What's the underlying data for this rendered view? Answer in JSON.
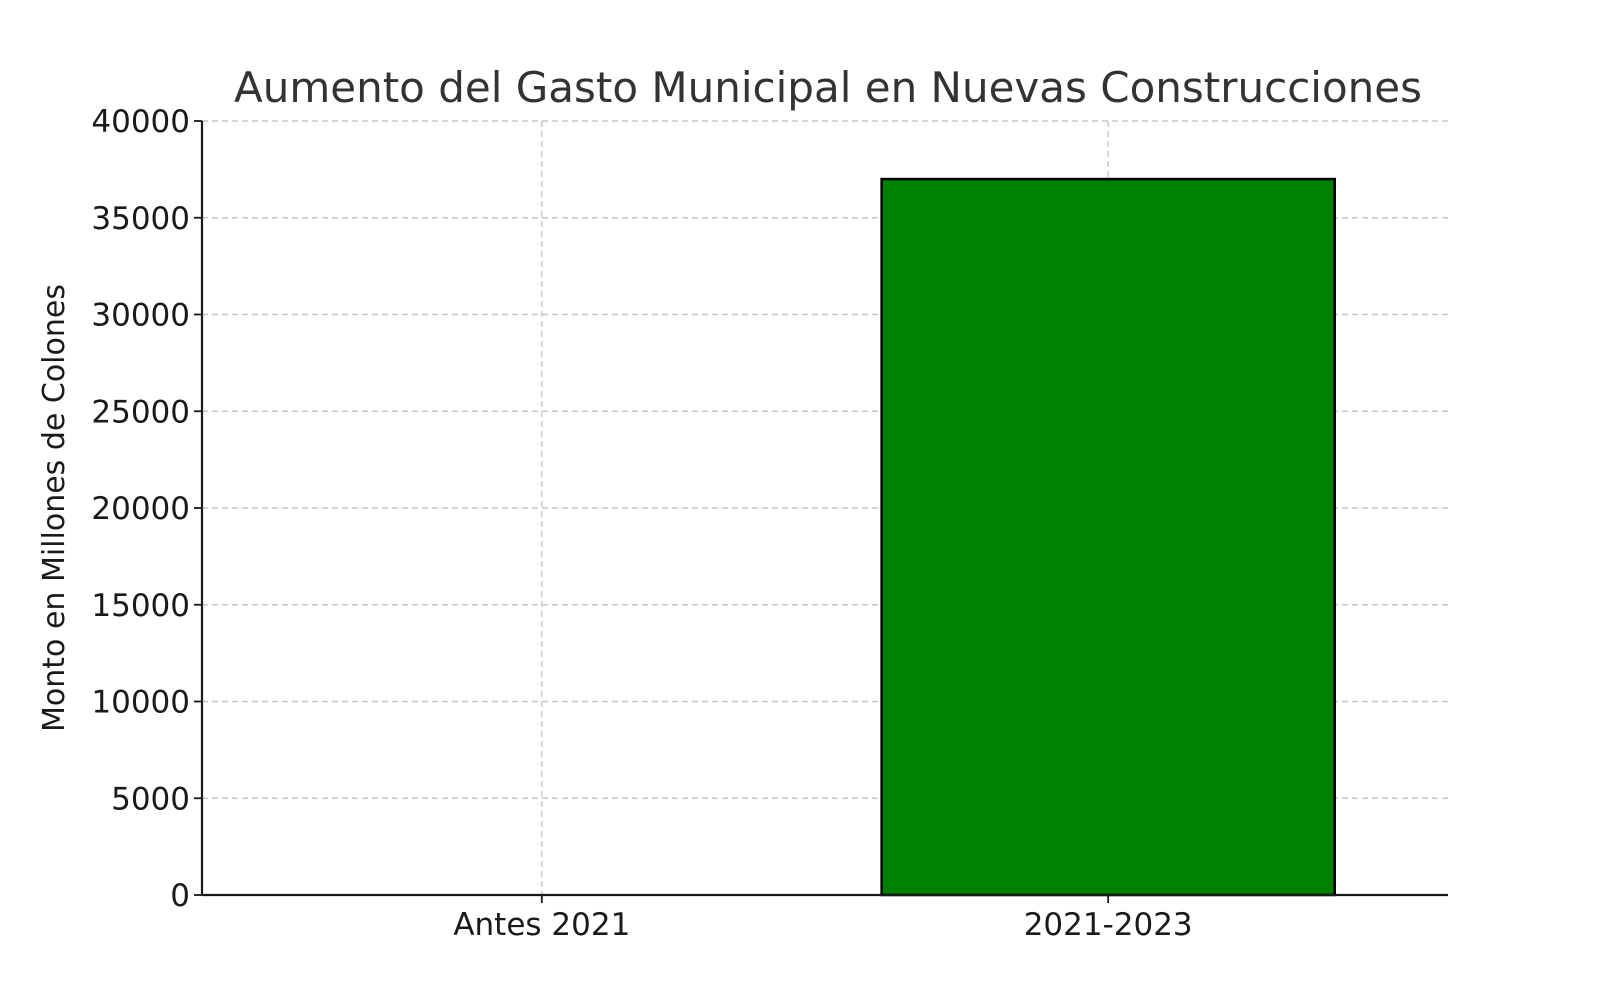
{
  "chart_data": {
    "type": "bar",
    "title": "Aumento del Gasto Municipal en Nuevas Construcciones",
    "xlabel": "",
    "ylabel": "Monto en Millones de Colones",
    "categories": [
      "Antes 2021",
      "2021-2023"
    ],
    "values": [
      0,
      37000
    ],
    "ylim": [
      0,
      40000
    ],
    "yticks": [
      "0",
      "5000",
      "10000",
      "15000",
      "20000",
      "25000",
      "30000",
      "35000",
      "40000"
    ],
    "grid": true,
    "bar_color": "#008000",
    "bar_edge_color": "#000000"
  }
}
